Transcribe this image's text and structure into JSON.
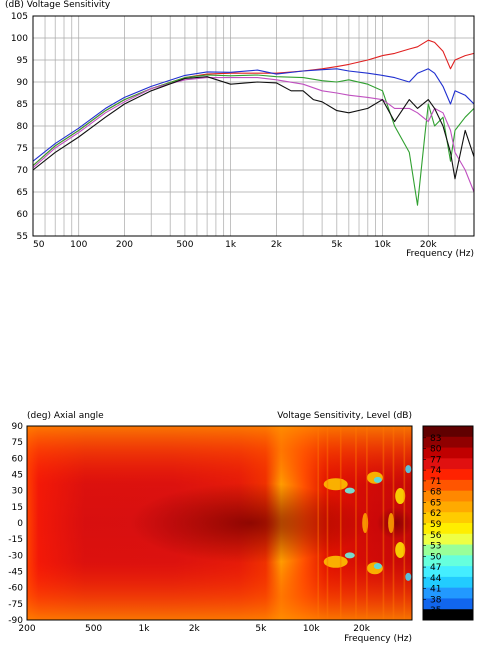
{
  "chart_data": [
    {
      "type": "line",
      "title": "(dB)  Voltage Sensitivity",
      "xlabel": "Frequency  (Hz)",
      "ylabel": "",
      "xscale": "log",
      "xlim": [
        50,
        40000
      ],
      "ylim": [
        55,
        105
      ],
      "grid": true,
      "legend": "none",
      "x_ticks": [
        {
          "value": 50,
          "label": "50"
        },
        {
          "value": 100,
          "label": "100"
        },
        {
          "value": 200,
          "label": "200"
        },
        {
          "value": 500,
          "label": "500"
        },
        {
          "value": 1000,
          "label": "1k"
        },
        {
          "value": 2000,
          "label": "2k"
        },
        {
          "value": 5000,
          "label": "5k"
        },
        {
          "value": 10000,
          "label": "10k"
        },
        {
          "value": 20000,
          "label": "20k"
        }
      ],
      "y_ticks": [
        55,
        60,
        65,
        70,
        75,
        80,
        85,
        90,
        95,
        100,
        105
      ],
      "series": [
        {
          "color": "#e02020",
          "x": [
            50,
            70,
            100,
            150,
            200,
            300,
            500,
            700,
            1000,
            1500,
            2000,
            3000,
            4000,
            5000,
            6000,
            8000,
            10000,
            12000,
            15000,
            17000,
            20000,
            22000,
            25000,
            28000,
            30000,
            35000,
            40000
          ],
          "y": [
            71,
            75.5,
            79,
            83.5,
            86,
            88.5,
            91,
            91.8,
            92,
            92,
            92,
            92.5,
            93,
            93.5,
            94,
            95,
            96,
            96.5,
            97.5,
            98,
            99.5,
            99,
            97,
            93,
            95,
            96,
            96.5
          ]
        },
        {
          "color": "#2030d0",
          "x": [
            50,
            70,
            100,
            150,
            200,
            300,
            500,
            700,
            1000,
            1500,
            2000,
            3000,
            4000,
            5000,
            6000,
            8000,
            10000,
            12000,
            15000,
            17000,
            20000,
            22000,
            25000,
            28000,
            30000,
            35000,
            40000
          ],
          "y": [
            72,
            76,
            79.5,
            84,
            86.5,
            89,
            91.5,
            92.3,
            92.2,
            92.7,
            91.8,
            92.5,
            92.8,
            93,
            92.5,
            92,
            91.5,
            91,
            90,
            92,
            93,
            92,
            89,
            85,
            88,
            87,
            85
          ]
        },
        {
          "color": "#30a030",
          "x": [
            50,
            70,
            100,
            150,
            200,
            300,
            500,
            700,
            1000,
            1500,
            2000,
            3000,
            4000,
            5000,
            6000,
            8000,
            10000,
            12000,
            15000,
            17000,
            19000,
            20000,
            22000,
            25000,
            28000,
            30000,
            35000,
            40000
          ],
          "y": [
            71,
            75.5,
            79,
            83.5,
            86,
            88.5,
            91,
            91.6,
            91.4,
            91.6,
            91.2,
            91,
            90.3,
            90,
            90.5,
            89.5,
            88,
            80,
            74,
            62,
            78,
            85,
            80,
            82,
            72,
            79,
            82,
            84
          ]
        },
        {
          "color": "#c050c0",
          "x": [
            50,
            70,
            100,
            150,
            200,
            300,
            500,
            700,
            1000,
            1500,
            2000,
            3000,
            4000,
            5000,
            6000,
            8000,
            10000,
            12000,
            15000,
            17000,
            20000,
            22000,
            25000,
            28000,
            30000,
            35000,
            40000
          ],
          "y": [
            70.5,
            75,
            78.5,
            83,
            85.5,
            88.5,
            90.5,
            91,
            91,
            91,
            90.5,
            89.5,
            88,
            87.5,
            87,
            86.5,
            86,
            84,
            84,
            83,
            81,
            84,
            83,
            79,
            74,
            70,
            65
          ]
        },
        {
          "color": "#101010",
          "x": [
            50,
            70,
            100,
            150,
            200,
            300,
            500,
            700,
            1000,
            1500,
            2000,
            2500,
            3000,
            3500,
            4000,
            5000,
            6000,
            8000,
            10000,
            12000,
            15000,
            17000,
            20000,
            22000,
            25000,
            28000,
            30000,
            35000,
            40000
          ],
          "y": [
            70,
            74,
            77.5,
            82,
            85,
            88,
            90.8,
            91.2,
            89.5,
            90,
            89.8,
            88,
            88,
            86,
            85.5,
            83.5,
            83,
            84,
            86,
            81,
            86,
            84,
            86,
            84,
            80,
            74,
            68,
            79,
            73
          ]
        }
      ]
    },
    {
      "type": "heatmap",
      "title": "(deg)  Axial angle",
      "title_right": "Voltage Sensitivity, Level  (dB)",
      "xlabel": "Frequency  (Hz)",
      "ylabel": "",
      "xscale": "log",
      "xlim": [
        200,
        40000
      ],
      "ylim": [
        -90,
        90
      ],
      "x_ticks": [
        {
          "value": 200,
          "label": "200"
        },
        {
          "value": 500,
          "label": "500"
        },
        {
          "value": 1000,
          "label": "1k"
        },
        {
          "value": 2000,
          "label": "2k"
        },
        {
          "value": 5000,
          "label": "5k"
        },
        {
          "value": 10000,
          "label": "10k"
        },
        {
          "value": 20000,
          "label": "20k"
        }
      ],
      "y_ticks": [
        90,
        75,
        60,
        45,
        30,
        15,
        0,
        -15,
        -30,
        -45,
        -60,
        -75,
        -90
      ],
      "colorbar": {
        "labels": [
          "83",
          "80",
          "77",
          "74",
          "71",
          "68",
          "65",
          "62",
          "59",
          "56",
          "53",
          "50",
          "47",
          "44",
          "41",
          "38",
          "35"
        ],
        "colors": [
          "#600000",
          "#900000",
          "#c00000",
          "#e01010",
          "#ff2200",
          "#ff5500",
          "#ff8800",
          "#ffaa00",
          "#ffcc00",
          "#ffee00",
          "#eeff44",
          "#99ff99",
          "#66ffdd",
          "#44eeff",
          "#22ccff",
          "#2299ff",
          "#1166ee",
          "#000000"
        ]
      }
    }
  ]
}
